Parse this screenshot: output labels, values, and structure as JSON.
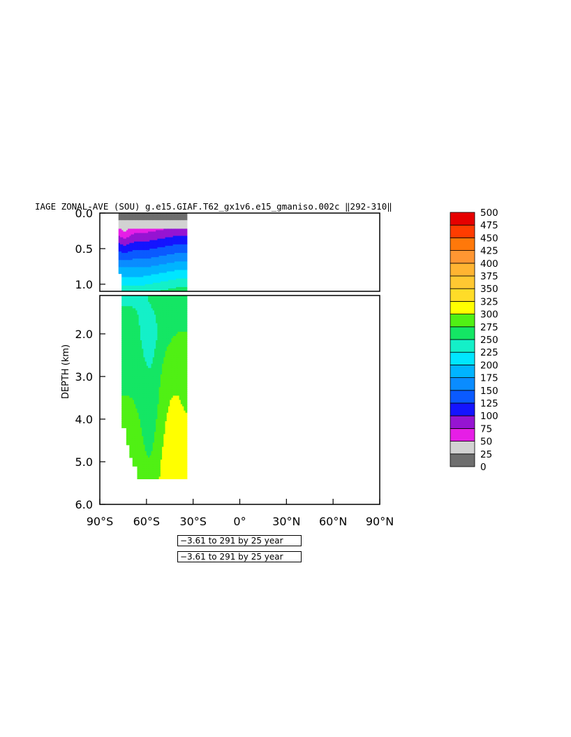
{
  "chart_data": {
    "type": "heatmap",
    "title": "IAGE ZONAL-AVE (SOU) g.e15.GIAF.T62_gx1v6.e15_gmaniso.002c ‖292-310‖",
    "xlabel": "",
    "ylabel": "DEPTH (km)",
    "x_ticks": [
      "90°S",
      "60°S",
      "30°S",
      "0°",
      "30°N",
      "60°N",
      "90°N"
    ],
    "x_tick_values": [
      -90,
      -60,
      -30,
      0,
      30,
      60,
      90
    ],
    "y_ticks_top": [
      "0.0",
      "0.5",
      "1.0"
    ],
    "y_tick_values_top": [
      0.0,
      0.5,
      1.0
    ],
    "y_ticks_bottom": [
      "2.0",
      "3.0",
      "4.0",
      "5.0",
      "6.0"
    ],
    "y_tick_values_bottom": [
      2.0,
      3.0,
      4.0,
      5.0,
      6.0
    ],
    "xlim": [
      -90,
      90
    ],
    "ylim_top": [
      0.0,
      1.1
    ],
    "ylim_bottom": [
      1.1,
      6.0
    ],
    "data_extent": {
      "lat_range": [
        -78,
        -34
      ],
      "max_depth_km": 5.4
    },
    "colorbar": {
      "levels": [
        0,
        25,
        50,
        75,
        100,
        125,
        150,
        175,
        200,
        225,
        250,
        275,
        300,
        325,
        350,
        375,
        400,
        425,
        450,
        475,
        500
      ],
      "labels": [
        "0",
        "25",
        "50",
        "75",
        "100",
        "125",
        "150",
        "175",
        "200",
        "225",
        "250",
        "275",
        "300",
        "325",
        "350",
        "375",
        "400",
        "425",
        "450",
        "475",
        "500"
      ],
      "colors": [
        "#6e6e6e",
        "#d2d2d2",
        "#e61ee6",
        "#9614d2",
        "#1414ff",
        "#0a5aff",
        "#0a8cff",
        "#00b4ff",
        "#00e6ff",
        "#14f0c8",
        "#14e664",
        "#50f014",
        "#ffff00",
        "#ffdc28",
        "#ffc832",
        "#ffb432",
        "#ff9632",
        "#ff780a",
        "#ff3c00",
        "#e60000"
      ]
    },
    "info_boxes": [
      "−3.61 to 291 by 25 year",
      "−3.61 to 291 by 25 year"
    ]
  }
}
